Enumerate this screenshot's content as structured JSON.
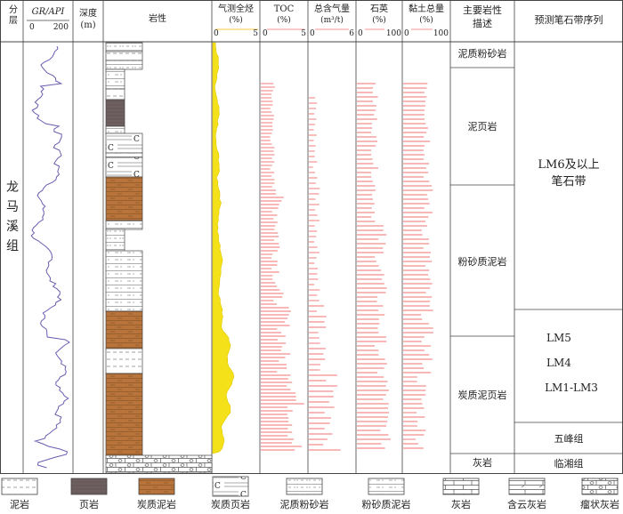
{
  "headers": {
    "formation": "分层",
    "gr_title": "GR/API",
    "gr_min": "0",
    "gr_max": "200",
    "depth": "深度",
    "depth_unit": "(m)",
    "lithology": "岩性",
    "gas_title": "气测全烃",
    "gas_unit": "(%)",
    "gas_min": "0",
    "gas_max": "5",
    "toc_title": "TOC",
    "toc_unit": "(%)",
    "toc_min": "0",
    "toc_max": "5",
    "total_gas_title": "总含气量",
    "total_gas_unit": "(m³/t)",
    "total_gas_min": "0",
    "total_gas_max": "6",
    "quartz_title": "石英",
    "quartz_unit": "(%)",
    "quartz_min": "0",
    "quartz_max": "100",
    "clay_title": "黏土总量",
    "clay_unit": "(%)",
    "clay_min": "0",
    "clay_max": "100",
    "main_litho": "主要岩性描述",
    "grapto": "预测笔石带序列"
  },
  "formation_name": "龙马溪组",
  "lithology_descriptions": [
    "泥质粉砂岩",
    "泥页岩",
    "粉砂质泥岩",
    "炭质泥页岩",
    "灰岩"
  ],
  "graptolite_zones": [
    "LM6及以上笔石带",
    "LM5",
    "LM4",
    "LM1-LM3",
    "五峰组",
    "临湘组"
  ],
  "legend": [
    "泥岩",
    "页岩",
    "炭质泥岩",
    "炭质页岩",
    "泥质粉砂岩",
    "粉砂质泥岩",
    "灰岩",
    "含云灰岩",
    "瘤状灰岩"
  ],
  "colors": {
    "carbonaceous_mudstone": "#b8743a",
    "shale": "#6e6060",
    "gas_fill": "#f5e11a",
    "bar_red": "#f07070",
    "gr_curve": "#6b5bb0"
  }
}
